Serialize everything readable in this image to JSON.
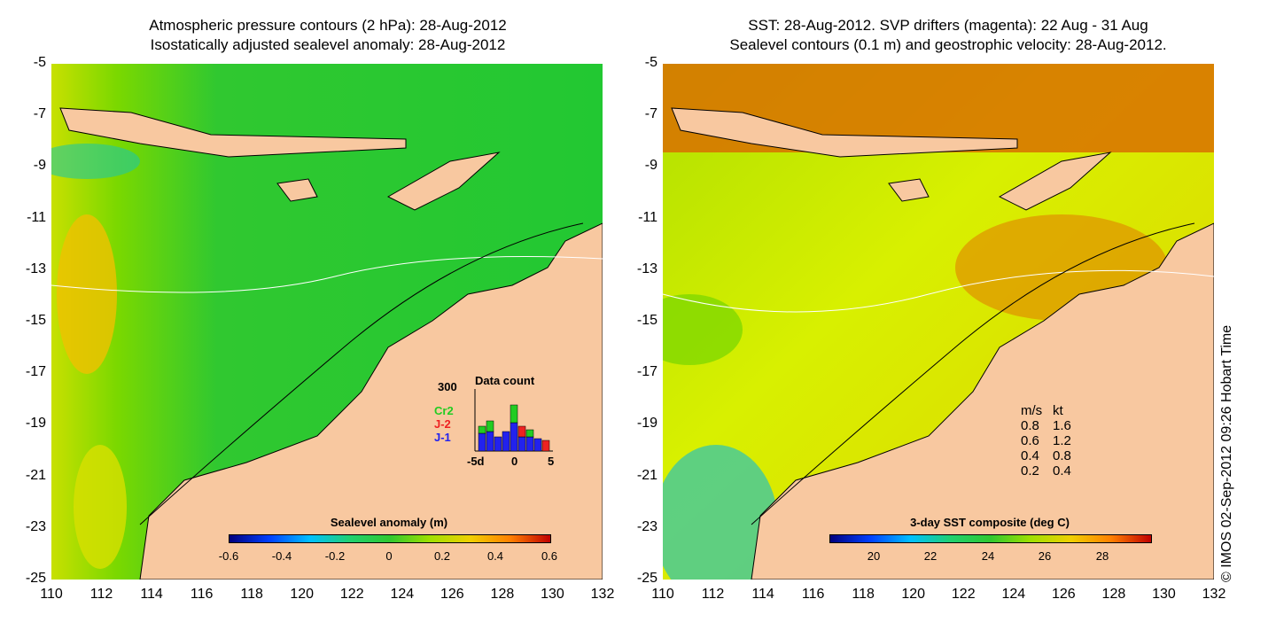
{
  "left_panel": {
    "title_line1": "Atmospheric pressure contours (2 hPa): 28-Aug-2012",
    "title_line2": "Isostatically adjusted sealevel anomaly: 28-Aug-2012",
    "colorbar_label": "Sealevel anomaly (m)",
    "colorbar_ticks": [
      "-0.6",
      "-0.4",
      "-0.2",
      "0",
      "0.2",
      "0.4",
      "0.6"
    ],
    "inset_title": "Data count",
    "inset_ymax": "300",
    "inset_xticks": [
      "-5d",
      "0",
      "5"
    ],
    "legend": [
      {
        "label": "Cr2",
        "color": "#22cc22"
      },
      {
        "label": "J-2",
        "color": "#ee2222"
      },
      {
        "label": "J-1",
        "color": "#2222ee"
      }
    ]
  },
  "right_panel": {
    "title_line1": "SST: 28-Aug-2012. SVP drifters (magenta): 22 Aug - 31 Aug",
    "title_line2": "Sealevel contours (0.1 m) and geostrophic velocity: 28-Aug-2012.",
    "colorbar_label": "3-day SST composite (deg C)",
    "colorbar_ticks": [
      "20",
      "22",
      "24",
      "26",
      "28"
    ],
    "speed_legend_header_ms": "m/s",
    "speed_legend_header_kt": "kt",
    "speed_legend": [
      {
        "ms": "0.8",
        "kt": "1.6"
      },
      {
        "ms": "0.6",
        "kt": "1.2"
      },
      {
        "ms": "0.4",
        "kt": "0.8"
      },
      {
        "ms": "0.2",
        "kt": "0.4"
      }
    ]
  },
  "axes": {
    "y_ticks": [
      "-5",
      "-7",
      "-9",
      "-11",
      "-13",
      "-15",
      "-17",
      "-19",
      "-21",
      "-23",
      "-25"
    ],
    "x_ticks": [
      "110",
      "112",
      "114",
      "116",
      "118",
      "120",
      "122",
      "124",
      "126",
      "128",
      "130",
      "132"
    ]
  },
  "copyright": "© IMOS 02-Sep-2012 09:26 Hobart Time",
  "colors": {
    "land": "#f8c8a0",
    "sea_left": "#22c832",
    "sea_right": "#d8f000",
    "warm": "#d84800"
  }
}
